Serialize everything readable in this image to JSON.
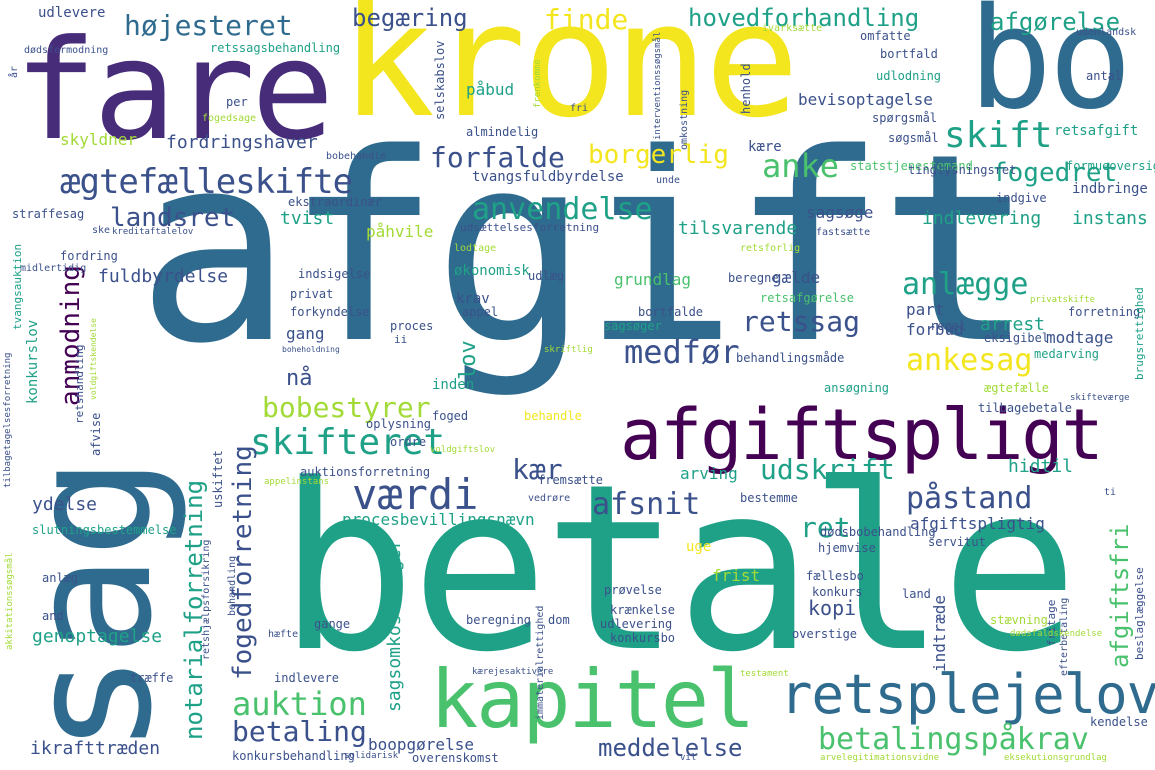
{
  "palette": {
    "yellow": "#f3e51e",
    "lime": "#a2da37",
    "green": "#4ac16d",
    "teal": "#1fa188",
    "teal2": "#22868d",
    "blue": "#2f6b8e",
    "indigo": "#3b518b",
    "purple": "#472c7a",
    "dark": "#440154"
  },
  "words": [
    {
      "text": "afgift",
      "color": "blue"
    },
    {
      "text": "betale",
      "color": "teal"
    },
    {
      "text": "krone",
      "color": "yellow"
    },
    {
      "text": "fare",
      "color": "purple"
    },
    {
      "text": "bo",
      "color": "blue"
    },
    {
      "text": "sag",
      "color": "blue"
    },
    {
      "text": "kapitel",
      "color": "green"
    },
    {
      "text": "afgiftspligt",
      "color": "dark"
    },
    {
      "text": "retsplejelov",
      "color": "blue"
    },
    {
      "text": "værdi",
      "color": "indigo"
    },
    {
      "text": "ægtefælleskifte",
      "color": "indigo"
    },
    {
      "text": "betalingspåkrav",
      "color": "green"
    },
    {
      "text": "skifteret",
      "color": "teal"
    },
    {
      "text": "auktion",
      "color": "green"
    },
    {
      "text": "betaling",
      "color": "indigo"
    },
    {
      "text": "retssag",
      "color": "indigo"
    },
    {
      "text": "anvendelse",
      "color": "teal"
    },
    {
      "text": "påstand",
      "color": "indigo"
    },
    {
      "text": "højesteret",
      "color": "blue"
    },
    {
      "text": "hovedforhandling",
      "color": "teal"
    },
    {
      "text": "afgørelse",
      "color": "teal"
    },
    {
      "text": "begæring",
      "color": "indigo"
    },
    {
      "text": "finde",
      "color": "yellow"
    },
    {
      "text": "skift",
      "color": "teal"
    },
    {
      "text": "anke",
      "color": "green"
    },
    {
      "text": "borgerlig",
      "color": "yellow"
    },
    {
      "text": "forfalde",
      "color": "indigo"
    },
    {
      "text": "fogedret",
      "color": "teal"
    },
    {
      "text": "landsret",
      "color": "indigo"
    },
    {
      "text": "anlægge",
      "color": "teal"
    },
    {
      "text": "medfør",
      "color": "indigo"
    },
    {
      "text": "ankesag",
      "color": "yellow"
    },
    {
      "text": "bobestyrer",
      "color": "lime"
    },
    {
      "text": "kær",
      "color": "indigo"
    },
    {
      "text": "udskrift",
      "color": "teal"
    },
    {
      "text": "afsnit",
      "color": "indigo"
    },
    {
      "text": "ret",
      "color": "teal"
    },
    {
      "text": "meddelelse",
      "color": "indigo"
    },
    {
      "text": "boopgørelse",
      "color": "indigo"
    },
    {
      "text": "ikrafttræden",
      "color": "indigo"
    },
    {
      "text": "genoptagelse",
      "color": "teal"
    },
    {
      "text": "ydelse",
      "color": "indigo"
    },
    {
      "text": "procesbevillingsnævn",
      "color": "teal"
    },
    {
      "text": "afgiftspligtig",
      "color": "indigo"
    },
    {
      "text": "kopi",
      "color": "indigo"
    },
    {
      "text": "frist",
      "color": "lime"
    },
    {
      "text": "uge",
      "color": "yellow"
    },
    {
      "text": "tvist",
      "color": "teal"
    },
    {
      "text": "instans",
      "color": "teal"
    },
    {
      "text": "indlevering",
      "color": "teal"
    },
    {
      "text": "sagsøge",
      "color": "indigo"
    },
    {
      "text": "tilsvarende",
      "color": "teal"
    },
    {
      "text": "påhvile",
      "color": "lime"
    },
    {
      "text": "fuldbyrdelse",
      "color": "indigo"
    },
    {
      "text": "økonomisk",
      "color": "teal"
    },
    {
      "text": "grundlag",
      "color": "green"
    },
    {
      "text": "gælde",
      "color": "indigo"
    },
    {
      "text": "krav",
      "color": "indigo"
    },
    {
      "text": "part",
      "color": "indigo"
    },
    {
      "text": "arrest",
      "color": "teal"
    },
    {
      "text": "modtage",
      "color": "indigo"
    },
    {
      "text": "forbud",
      "color": "indigo"
    },
    {
      "text": "gang",
      "color": "indigo"
    },
    {
      "text": "nå",
      "color": "indigo"
    },
    {
      "text": "lov",
      "color": "teal"
    },
    {
      "text": "inden",
      "color": "teal"
    },
    {
      "text": "hidtil",
      "color": "teal"
    },
    {
      "text": "arving",
      "color": "teal"
    },
    {
      "text": "bevisoptagelse",
      "color": "indigo"
    },
    {
      "text": "fordringshaver",
      "color": "indigo"
    },
    {
      "text": "skyldner",
      "color": "lime"
    },
    {
      "text": "tvangsfuldbyrdelse",
      "color": "indigo"
    },
    {
      "text": "anmodning",
      "color": "dark"
    },
    {
      "text": "notarialforretning",
      "color": "teal"
    },
    {
      "text": "fogedforretning",
      "color": "indigo"
    },
    {
      "text": "afgiftsfri",
      "color": "green"
    },
    {
      "text": "sagsomkostninger",
      "color": "teal"
    },
    {
      "text": "indtræde",
      "color": "indigo"
    },
    {
      "text": "konkurslov",
      "color": "teal"
    },
    {
      "text": "udlevere",
      "color": "indigo"
    },
    {
      "text": "retssagsbehandling",
      "color": "teal"
    },
    {
      "text": "påbud",
      "color": "teal"
    },
    {
      "text": "almindelig",
      "color": "indigo"
    },
    {
      "text": "retsafgift",
      "color": "teal"
    },
    {
      "text": "søgsmål",
      "color": "indigo"
    },
    {
      "text": "kære",
      "color": "indigo"
    },
    {
      "text": "statstjenestemand",
      "color": "green"
    },
    {
      "text": "formueoversigt",
      "color": "teal"
    },
    {
      "text": "indbringe",
      "color": "indigo"
    },
    {
      "text": "ekstraordinær",
      "color": "indigo"
    },
    {
      "text": "tinglysningsret",
      "color": "indigo"
    },
    {
      "text": "indgive",
      "color": "indigo"
    },
    {
      "text": "straffesag",
      "color": "indigo"
    },
    {
      "text": "fordring",
      "color": "indigo"
    },
    {
      "text": "indsigelse",
      "color": "indigo"
    },
    {
      "text": "privat",
      "color": "indigo"
    },
    {
      "text": "forkyndelse",
      "color": "indigo"
    },
    {
      "text": "proces",
      "color": "indigo"
    },
    {
      "text": "appel",
      "color": "indigo"
    },
    {
      "text": "sagsøger",
      "color": "teal"
    },
    {
      "text": "udlæg",
      "color": "indigo"
    },
    {
      "text": "beregne",
      "color": "indigo"
    },
    {
      "text": "retsafgørelse",
      "color": "green"
    },
    {
      "text": "bortfalde",
      "color": "indigo"
    },
    {
      "text": "regel",
      "color": "indigo"
    },
    {
      "text": "eksigibel",
      "color": "indigo"
    },
    {
      "text": "behandlingsmåde",
      "color": "indigo"
    },
    {
      "text": "medarving",
      "color": "teal"
    },
    {
      "text": "ansøgning",
      "color": "teal"
    },
    {
      "text": "ægtefælle",
      "color": "lime"
    },
    {
      "text": "tilbagebetale",
      "color": "indigo"
    },
    {
      "text": "oplysning",
      "color": "indigo"
    },
    {
      "text": "ordre",
      "color": "indigo"
    },
    {
      "text": "foged",
      "color": "indigo"
    },
    {
      "text": "behandle",
      "color": "yellow"
    },
    {
      "text": "auktionsforretning",
      "color": "indigo"
    },
    {
      "text": "fremsætte",
      "color": "indigo"
    },
    {
      "text": "slutningsbestemmelse",
      "color": "teal"
    },
    {
      "text": "anlæg",
      "color": "indigo"
    },
    {
      "text": "and",
      "color": "indigo"
    },
    {
      "text": "bestemme",
      "color": "indigo"
    },
    {
      "text": "dødsbobehandling",
      "color": "indigo"
    },
    {
      "text": "servitut",
      "color": "indigo"
    },
    {
      "text": "hjemvise",
      "color": "indigo"
    },
    {
      "text": "fællesbo",
      "color": "indigo"
    },
    {
      "text": "konkurs",
      "color": "indigo"
    },
    {
      "text": "prøvelse",
      "color": "indigo"
    },
    {
      "text": "land",
      "color": "indigo"
    },
    {
      "text": "gange",
      "color": "indigo"
    },
    {
      "text": "beregning",
      "color": "indigo"
    },
    {
      "text": "dom",
      "color": "indigo"
    },
    {
      "text": "krænkelse",
      "color": "indigo"
    },
    {
      "text": "udlevering",
      "color": "indigo"
    },
    {
      "text": "konkursbo",
      "color": "indigo"
    },
    {
      "text": "overstige",
      "color": "indigo"
    },
    {
      "text": "stævning",
      "color": "lime"
    },
    {
      "text": "træffe",
      "color": "indigo"
    },
    {
      "text": "indlevere",
      "color": "indigo"
    },
    {
      "text": "konkursbehandling",
      "color": "indigo"
    },
    {
      "text": "overenskomst",
      "color": "indigo"
    },
    {
      "text": "kendelse",
      "color": "indigo"
    },
    {
      "text": "omfatte",
      "color": "indigo"
    },
    {
      "text": "bortfald",
      "color": "indigo"
    },
    {
      "text": "udlodning",
      "color": "teal"
    },
    {
      "text": "antal",
      "color": "indigo"
    },
    {
      "text": "ivarksætte",
      "color": "lime"
    },
    {
      "text": "udenlandsk",
      "color": "indigo"
    },
    {
      "text": "dødsformodning",
      "color": "indigo"
    },
    {
      "text": "selskabslov",
      "color": "indigo"
    },
    {
      "text": "per",
      "color": "indigo"
    },
    {
      "text": "fogedsage",
      "color": "lime"
    },
    {
      "text": "fri",
      "color": "indigo"
    },
    {
      "text": "henhold",
      "color": "indigo"
    },
    {
      "text": "spørgsmål",
      "color": "indigo"
    },
    {
      "text": "bobehandle",
      "color": "indigo"
    },
    {
      "text": "unde",
      "color": "indigo"
    },
    {
      "text": "ske",
      "color": "indigo"
    },
    {
      "text": "kreditaftalelov",
      "color": "indigo"
    },
    {
      "text": "lodtage",
      "color": "lime"
    },
    {
      "text": "fastsætte",
      "color": "indigo"
    },
    {
      "text": "udsættelsesforretning",
      "color": "indigo"
    },
    {
      "text": "retsforlig",
      "color": "lime"
    },
    {
      "text": "midlertidig",
      "color": "indigo"
    },
    {
      "text": "tvangsauktion",
      "color": "teal"
    },
    {
      "text": "privatskifte",
      "color": "lime"
    },
    {
      "text": "forretning",
      "color": "indigo"
    },
    {
      "text": "brugsrettighed",
      "color": "teal"
    },
    {
      "text": "skifteværge",
      "color": "indigo"
    },
    {
      "text": "ti",
      "color": "indigo"
    },
    {
      "text": "retshandling",
      "color": "indigo"
    },
    {
      "text": "boheholdning",
      "color": "indigo"
    },
    {
      "text": "ii",
      "color": "indigo"
    },
    {
      "text": "skriftlig",
      "color": "lime"
    },
    {
      "text": "voldgiftslov",
      "color": "lime"
    },
    {
      "text": "afvise",
      "color": "indigo"
    },
    {
      "text": "uskiftet",
      "color": "indigo"
    },
    {
      "text": "appelinstans",
      "color": "lime"
    },
    {
      "text": "vedrøre",
      "color": "indigo"
    },
    {
      "text": "behandling",
      "color": "indigo"
    },
    {
      "text": "ye",
      "color": "indigo"
    },
    {
      "text": "fritage",
      "color": "indigo"
    },
    {
      "text": "beslaglæggelse",
      "color": "indigo"
    },
    {
      "text": "efterbetaling",
      "color": "indigo"
    },
    {
      "text": "dødsfaldskendelse",
      "color": "lime"
    },
    {
      "text": "hæfte",
      "color": "indigo"
    },
    {
      "text": "immaterialrettighed",
      "color": "indigo"
    },
    {
      "text": "ankomst",
      "color": "indigo"
    },
    {
      "text": "erhverv",
      "color": "indigo"
    },
    {
      "text": "testament",
      "color": "lime"
    },
    {
      "text": "solidarisk",
      "color": "indigo"
    },
    {
      "text": "arvelegitimationsvidne",
      "color": "lime"
    },
    {
      "text": "eksekutionsgrundlag",
      "color": "lime"
    },
    {
      "text": "vil",
      "color": "indigo"
    },
    {
      "text": "år",
      "color": "indigo"
    },
    {
      "text": "omkostning",
      "color": "indigo"
    },
    {
      "text": "interventionssøgsmål",
      "color": "indigo"
    },
    {
      "text": "frenkomme",
      "color": "lime"
    },
    {
      "text": "akkitationssøgsmål",
      "color": "lime"
    },
    {
      "text": "retshjælpsforsikring",
      "color": "indigo"
    },
    {
      "text": "tilbagetagelsesforretning",
      "color": "indigo"
    },
    {
      "text": "voldgiftskendelse",
      "color": "lime"
    },
    {
      "text": "forvaring",
      "color": "indigo"
    },
    {
      "text": "udsættelse",
      "color": "indigo"
    },
    {
      "text": "kærejesaktivere",
      "color": "indigo"
    }
  ]
}
